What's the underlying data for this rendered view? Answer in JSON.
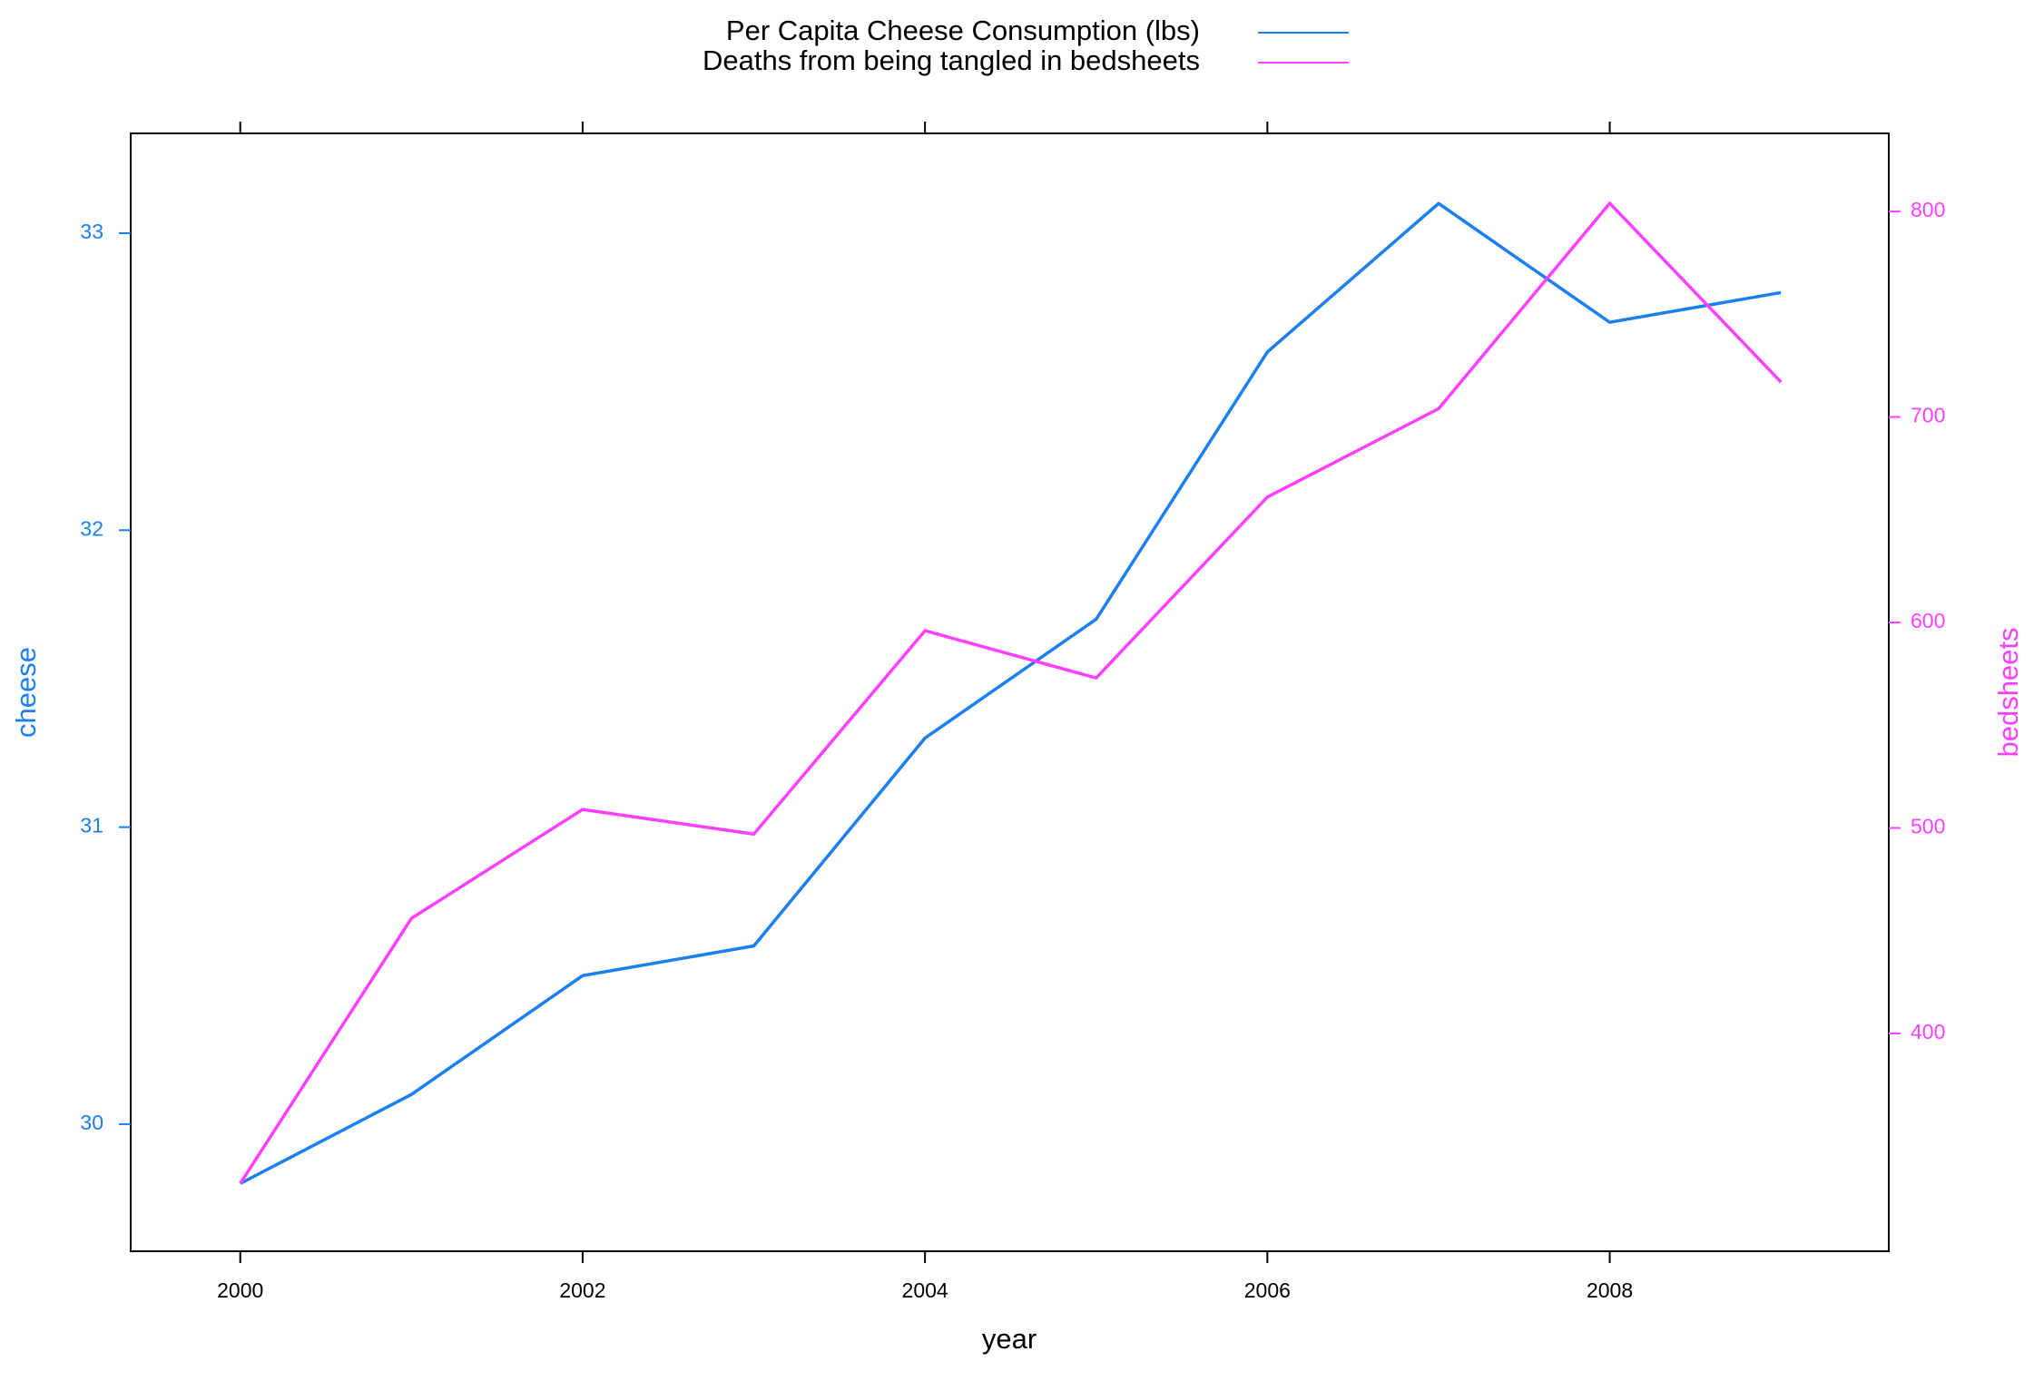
{
  "chart_data": {
    "type": "line",
    "legend_position": "top",
    "xlabel": "year",
    "ylabel": "cheese",
    "y2label": "bedsheets",
    "x": [
      2000,
      2001,
      2002,
      2003,
      2004,
      2005,
      2006,
      2007,
      2008,
      2009
    ],
    "series": [
      {
        "name": "Per Capita Cheese Consumption (lbs)",
        "color": "#1a7fef",
        "values": [
          29.8,
          30.1,
          30.5,
          30.6,
          31.3,
          31.7,
          32.6,
          33.1,
          32.7,
          32.8
        ]
      },
      {
        "name": "Deaths from being tangled in bedsheets",
        "color": "#ff3eff",
        "axis": "y2",
        "values": [
          327,
          456,
          509,
          497,
          596,
          573,
          661,
          704,
          804,
          717
        ]
      }
    ],
    "xlim": [
      1999.36,
      2009.63
    ],
    "xticks": [
      2000,
      2002,
      2004,
      2006,
      2008
    ],
    "ylim": [
      29.572,
      33.336
    ],
    "yticks": [
      30,
      31,
      32,
      33
    ],
    "y2lim": [
      294,
      838
    ],
    "y2ticks": [
      400,
      500,
      600,
      700,
      800
    ]
  }
}
